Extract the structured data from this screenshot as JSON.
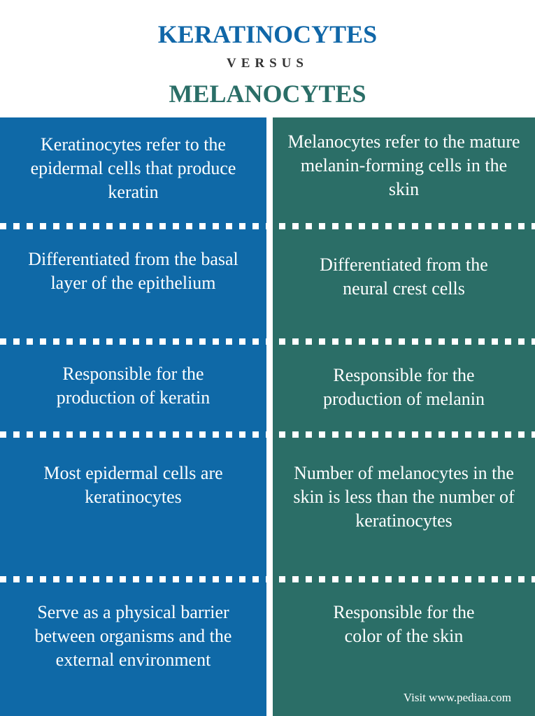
{
  "header": {
    "title_left": "KERATINOCYTES",
    "versus": "VERSUS",
    "title_right": "MELANOCYTES"
  },
  "colors": {
    "left": "#0f69a7",
    "right": "#2b6e67"
  },
  "rows": [
    {
      "left": "Keratinocytes refer to the epidermal cells that produce keratin",
      "right": "Melanocytes refer to the mature melanin-forming cells in the skin"
    },
    {
      "left": "Differentiated from the basal layer of the epithelium",
      "right": "Differentiated from the neural crest cells"
    },
    {
      "left": "Responsible for the production of keratin",
      "right": "Responsible for the production of melanin"
    },
    {
      "left": "Most epidermal cells are keratinocytes",
      "right": "Number of melanocytes in the skin is less than the number of keratinocytes"
    },
    {
      "left": "Serve as a physical barrier between organisms and the external environment",
      "right": "Responsible for the color of the skin"
    }
  ],
  "credit": "Visit www.pediaa.com"
}
